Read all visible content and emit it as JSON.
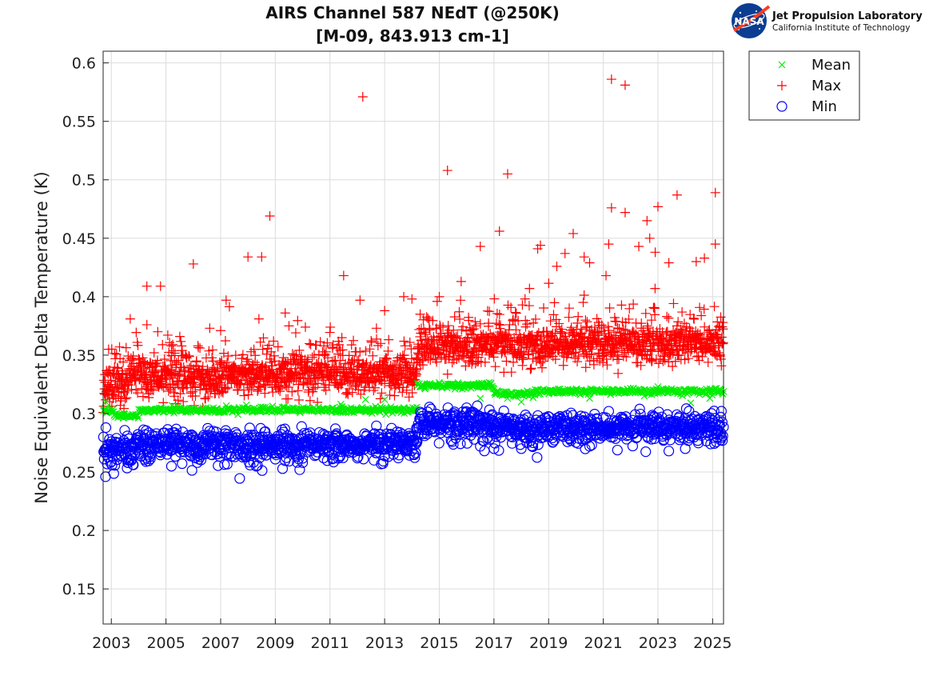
{
  "logo": {
    "org_name": "Jet Propulsion Laboratory",
    "org_sub": "California Institute of Technology",
    "badge": "NASA"
  },
  "chart_data": {
    "type": "scatter",
    "title_line1": "AIRS Channel 587 NEdT (@250K)",
    "title_line2": "[M-09, 843.913 cm-1]",
    "xlabel": "",
    "ylabel": "Noise Equivalent Delta Temperature (K)",
    "xlim": [
      2002.7,
      2025.4
    ],
    "ylim": [
      0.12,
      0.61
    ],
    "x_ticks": [
      "2003",
      "2005",
      "2007",
      "2009",
      "2011",
      "2013",
      "2015",
      "2017",
      "2019",
      "2021",
      "2023",
      "2025"
    ],
    "y_ticks": [
      "0.15",
      "0.2",
      "0.25",
      "0.3",
      "0.35",
      "0.4",
      "0.45",
      "0.5",
      "0.55",
      "0.6"
    ],
    "grid": true,
    "legend_position": "outside-top-right",
    "series": [
      {
        "name": "Mean",
        "marker": "x",
        "color": "#00ee00",
        "segments": [
          {
            "x0": 2002.7,
            "x1": 2003.1,
            "y": 0.303
          },
          {
            "x0": 2003.1,
            "x1": 2004.0,
            "y": 0.298
          },
          {
            "x0": 2004.0,
            "x1": 2014.2,
            "y": 0.303
          },
          {
            "x0": 2014.2,
            "x1": 2017.0,
            "y": 0.324
          },
          {
            "x0": 2017.0,
            "x1": 2018.5,
            "y": 0.317
          },
          {
            "x0": 2018.5,
            "x1": 2025.4,
            "y": 0.319
          }
        ],
        "outliers": [
          [
            2002.8,
            0.31
          ],
          [
            2011.4,
            0.308
          ],
          [
            2012.3,
            0.312
          ],
          [
            2013.0,
            0.312
          ],
          [
            2016.5,
            0.313
          ],
          [
            2017.5,
            0.313
          ],
          [
            2018.0,
            0.31
          ],
          [
            2020.5,
            0.313
          ],
          [
            2022.5,
            0.315
          ],
          [
            2023.0,
            0.323
          ],
          [
            2024.2,
            0.309
          ],
          [
            2024.9,
            0.313
          ]
        ]
      },
      {
        "name": "Max",
        "marker": "+",
        "color": "#ff0000",
        "segments": [
          {
            "x0": 2002.7,
            "x1": 2003.5,
            "y": 0.323
          },
          {
            "x0": 2003.5,
            "x1": 2008.0,
            "y": 0.33
          },
          {
            "x0": 2008.0,
            "x1": 2014.2,
            "y": 0.333
          },
          {
            "x0": 2014.2,
            "x1": 2019.0,
            "y": 0.356
          },
          {
            "x0": 2019.0,
            "x1": 2025.4,
            "y": 0.358
          }
        ],
        "outliers": [
          [
            2002.9,
            0.355
          ],
          [
            2003.3,
            0.357
          ],
          [
            2004.3,
            0.409
          ],
          [
            2004.3,
            0.376
          ],
          [
            2004.8,
            0.409
          ],
          [
            2004.7,
            0.37
          ],
          [
            2005.2,
            0.358
          ],
          [
            2006.0,
            0.428
          ],
          [
            2006.6,
            0.373
          ],
          [
            2007.2,
            0.397
          ],
          [
            2007.0,
            0.371
          ],
          [
            2008.0,
            0.434
          ],
          [
            2008.5,
            0.434
          ],
          [
            2008.4,
            0.381
          ],
          [
            2008.8,
            0.469
          ],
          [
            2009.5,
            0.375
          ],
          [
            2010.1,
            0.374
          ],
          [
            2011.5,
            0.418
          ],
          [
            2012.1,
            0.397
          ],
          [
            2012.2,
            0.571
          ],
          [
            2012.7,
            0.373
          ],
          [
            2013.0,
            0.388
          ],
          [
            2013.7,
            0.4
          ],
          [
            2014.0,
            0.398
          ],
          [
            2014.3,
            0.385
          ],
          [
            2015.0,
            0.4
          ],
          [
            2015.3,
            0.508
          ],
          [
            2015.8,
            0.413
          ],
          [
            2016.5,
            0.443
          ],
          [
            2017.2,
            0.456
          ],
          [
            2017.5,
            0.505
          ],
          [
            2018.3,
            0.407
          ],
          [
            2018.7,
            0.444
          ],
          [
            2018.6,
            0.441
          ],
          [
            2019.3,
            0.426
          ],
          [
            2019.6,
            0.437
          ],
          [
            2019.9,
            0.454
          ],
          [
            2020.3,
            0.434
          ],
          [
            2020.5,
            0.429
          ],
          [
            2021.1,
            0.418
          ],
          [
            2021.2,
            0.445
          ],
          [
            2021.3,
            0.586
          ],
          [
            2021.3,
            0.476
          ],
          [
            2021.8,
            0.581
          ],
          [
            2021.8,
            0.472
          ],
          [
            2022.3,
            0.443
          ],
          [
            2022.6,
            0.465
          ],
          [
            2022.7,
            0.45
          ],
          [
            2022.9,
            0.438
          ],
          [
            2023.0,
            0.477
          ],
          [
            2023.4,
            0.429
          ],
          [
            2023.7,
            0.487
          ],
          [
            2024.4,
            0.43
          ],
          [
            2024.7,
            0.433
          ],
          [
            2025.1,
            0.445
          ],
          [
            2025.1,
            0.489
          ]
        ]
      },
      {
        "name": "Min",
        "marker": "o",
        "color": "#0000ff",
        "segments": [
          {
            "x0": 2002.7,
            "x1": 2003.8,
            "y": 0.27
          },
          {
            "x0": 2003.8,
            "x1": 2014.2,
            "y": 0.275
          },
          {
            "x0": 2014.2,
            "x1": 2017.0,
            "y": 0.293
          },
          {
            "x0": 2017.0,
            "x1": 2025.4,
            "y": 0.289
          }
        ],
        "outliers": [
          [
            2002.8,
            0.288
          ],
          [
            2003.0,
            0.259
          ],
          [
            2003.6,
            0.258
          ],
          [
            2005.2,
            0.255
          ],
          [
            2006.2,
            0.261
          ],
          [
            2008.3,
            0.255
          ],
          [
            2009.0,
            0.261
          ],
          [
            2010.0,
            0.258
          ],
          [
            2013.5,
            0.262
          ],
          [
            2016.0,
            0.305
          ],
          [
            2016.5,
            0.272
          ],
          [
            2017.0,
            0.27
          ],
          [
            2018.0,
            0.27
          ],
          [
            2018.4,
            0.272
          ],
          [
            2020.5,
            0.272
          ],
          [
            2021.2,
            0.302
          ],
          [
            2024.0,
            0.27
          ],
          [
            2025.3,
            0.297
          ]
        ]
      }
    ]
  }
}
